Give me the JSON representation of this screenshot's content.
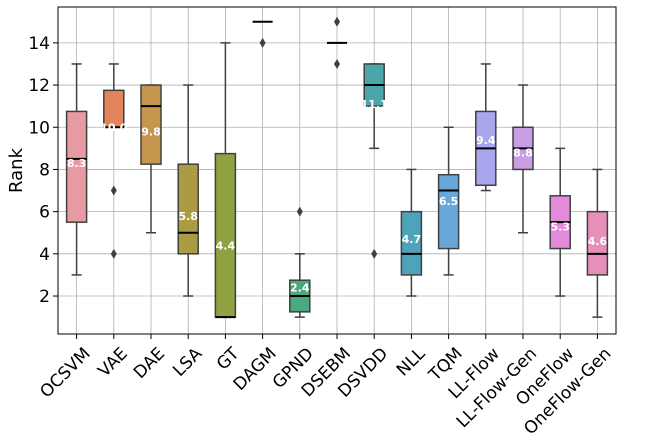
{
  "chart_data": {
    "type": "box",
    "title": "",
    "xlabel": "",
    "ylabel": "Rank",
    "ylim": [
      0.2,
      15.7
    ],
    "yticks": [
      2,
      4,
      6,
      8,
      10,
      12,
      14
    ],
    "grid": true,
    "categories": [
      "OCSVM",
      "VAE",
      "DAE",
      "LSA",
      "GT",
      "DAGM",
      "GPND",
      "DSEBM",
      "DSVDD",
      "NLL",
      "TQM",
      "LL-Flow",
      "LL-Flow-Gen",
      "OneFlow",
      "OneFlow-Gen"
    ],
    "boxes": [
      {
        "name": "OCSVM",
        "color": "#e89aa3",
        "whisker_low": 3,
        "q1": 5.5,
        "median": 8.5,
        "q3": 10.75,
        "whisker_high": 13,
        "outliers": [],
        "mean_label": "8.3"
      },
      {
        "name": "VAE",
        "color": "#e3855c",
        "whisker_low": 10,
        "q1": 10,
        "median": 10,
        "q3": 11.75,
        "whisker_high": 13,
        "outliers": [
          7,
          4
        ],
        "mean_label": "10.0"
      },
      {
        "name": "DAE",
        "color": "#c7964e",
        "whisker_low": 5,
        "q1": 8.25,
        "median": 11,
        "q3": 12,
        "whisker_high": 12,
        "outliers": [],
        "mean_label": "9.8"
      },
      {
        "name": "LSA",
        "color": "#ab9b43",
        "whisker_low": 2,
        "q1": 4,
        "median": 5,
        "q3": 8.25,
        "whisker_high": 12,
        "outliers": [],
        "mean_label": "5.8"
      },
      {
        "name": "GT",
        "color": "#8fa242",
        "whisker_low": 1,
        "q1": 1,
        "median": 1,
        "q3": 8.75,
        "whisker_high": 14,
        "outliers": [],
        "mean_label": "4.4"
      },
      {
        "name": "DAGM",
        "color": "#5ba84e",
        "whisker_low": 15,
        "q1": 15,
        "median": 15,
        "q3": 15,
        "whisker_high": 15,
        "outliers": [
          14
        ],
        "mean_label": ""
      },
      {
        "name": "GPND",
        "color": "#4ca97f",
        "whisker_low": 1,
        "q1": 1.25,
        "median": 2,
        "q3": 2.75,
        "whisker_high": 4,
        "outliers": [
          6
        ],
        "mean_label": "2.4"
      },
      {
        "name": "DSEBM",
        "color": "#47a595",
        "whisker_low": 14,
        "q1": 14,
        "median": 14,
        "q3": 14,
        "whisker_high": 14,
        "outliers": [
          15,
          13
        ],
        "mean_label": ""
      },
      {
        "name": "DSVDD",
        "color": "#4aa6a8",
        "whisker_low": 9,
        "q1": 11,
        "median": 12,
        "q3": 13,
        "whisker_high": 13,
        "outliers": [
          4
        ],
        "mean_label": "11.1"
      },
      {
        "name": "NLL",
        "color": "#4ea3ba",
        "whisker_low": 2,
        "q1": 3,
        "median": 4,
        "q3": 6,
        "whisker_high": 8,
        "outliers": [],
        "mean_label": "4.7"
      },
      {
        "name": "TQM",
        "color": "#6aa7d9",
        "whisker_low": 3,
        "q1": 4.25,
        "median": 7,
        "q3": 7.75,
        "whisker_high": 10,
        "outliers": [],
        "mean_label": "6.5"
      },
      {
        "name": "LL-Flow",
        "color": "#a8a6ec",
        "whisker_low": 7,
        "q1": 7.25,
        "median": 9,
        "q3": 10.75,
        "whisker_high": 13,
        "outliers": [],
        "mean_label": "9.4"
      },
      {
        "name": "LL-Flow-Gen",
        "color": "#c99ee5",
        "whisker_low": 5,
        "q1": 8,
        "median": 9,
        "q3": 10,
        "whisker_high": 12,
        "outliers": [],
        "mean_label": "8.8"
      },
      {
        "name": "OneFlow",
        "color": "#e589d9",
        "whisker_low": 2,
        "q1": 4.25,
        "median": 5.5,
        "q3": 6.75,
        "whisker_high": 9,
        "outliers": [],
        "mean_label": "5.3"
      },
      {
        "name": "OneFlow-Gen",
        "color": "#e58fb9",
        "whisker_low": 1,
        "q1": 3,
        "median": 4,
        "q3": 6,
        "whisker_high": 8,
        "outliers": [],
        "mean_label": "4.6"
      }
    ]
  }
}
